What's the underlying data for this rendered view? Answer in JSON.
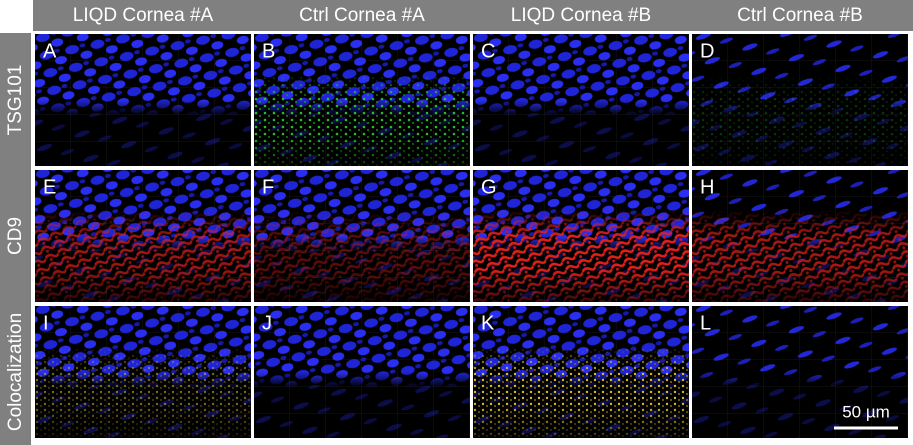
{
  "columns": [
    "LIQD Cornea #A",
    "Ctrl Cornea #A",
    "LIQD Cornea #B",
    "Ctrl Cornea #B"
  ],
  "rows": [
    "TSG101",
    "CD9",
    "Colocalization"
  ],
  "panels": [
    [
      "A",
      "B",
      "C",
      "D"
    ],
    [
      "E",
      "F",
      "G",
      "H"
    ],
    [
      "I",
      "J",
      "K",
      "L"
    ]
  ],
  "scale_bar": "50 µm"
}
